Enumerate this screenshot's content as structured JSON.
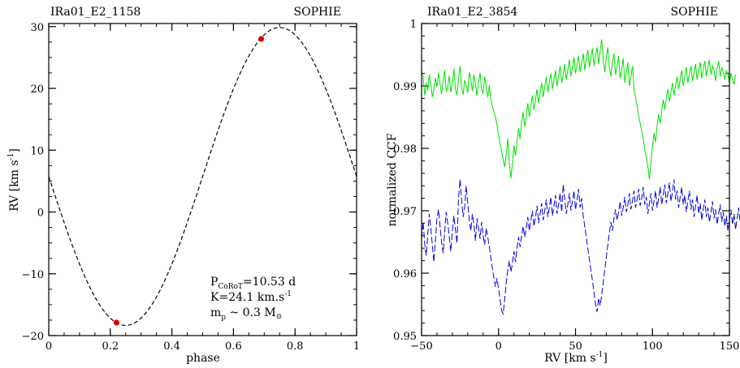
{
  "chart_data": [
    {
      "type": "line",
      "title": "IRa01_E2_1158",
      "instrument": "SOPHIE",
      "instrument_color": "#e00000",
      "xlabel": "phase",
      "ylabel_main": "RV  [km s",
      "ylabel_sup": "-1",
      "ylabel_end": "]",
      "xlim": [
        0,
        1
      ],
      "ylim": [
        -20,
        30.5
      ],
      "xticks": [
        0,
        0.2,
        0.4,
        0.6,
        0.8,
        1
      ],
      "xtick_labels": [
        "0",
        "0.2",
        "0.4",
        "0.6",
        "0.8",
        "1"
      ],
      "yticks": [
        -20,
        -10,
        0,
        10,
        20,
        30
      ],
      "ytick_labels": [
        "−20",
        "−10",
        "0",
        "10",
        "20",
        "30"
      ],
      "model_curve": {
        "style": "dashed",
        "color": "#000000",
        "function": "sine",
        "offset": 5.75,
        "amplitude": 24.1,
        "phase_of_minimum": 0.25
      },
      "series": [
        {
          "color": "#e00000",
          "points": [
            {
              "x": 0.22,
              "y": -17.9
            },
            {
              "x": 0.69,
              "y": 28.0
            }
          ]
        }
      ],
      "annotation": {
        "p_main": "P",
        "p_sub": "CoRoT",
        "p_value": "=10.53  d",
        "k_text": "K=24.1  km.s",
        "k_sup": "-1",
        "m_main": "m",
        "m_sub": "p",
        "m_value": " ~ 0.3  M",
        "m_sun": "⊙"
      }
    },
    {
      "type": "line",
      "title": "IRa01_E2_3854",
      "instrument": "SOPHIE",
      "instrument_color": "#000000",
      "xlabel_main": "RV  [km s",
      "xlabel_sup": "-1",
      "xlabel_end": "]",
      "ylabel": "normalized CCF",
      "xlim": [
        -50,
        150
      ],
      "ylim": [
        0.95,
        1.0
      ],
      "xticks": [
        -50,
        0,
        50,
        100,
        150
      ],
      "xtick_labels": [
        "−50",
        "0",
        "50",
        "100",
        "150"
      ],
      "yticks": [
        0.95,
        0.96,
        0.97,
        0.98,
        0.99,
        1.0
      ],
      "ytick_labels": [
        "0.95",
        "0.96",
        "0.97",
        "0.98",
        "0.99",
        "1"
      ],
      "series": [
        {
          "style": "solid",
          "color": "#00e000",
          "x_start": -50,
          "x_step": 1,
          "y": [
            0.9925,
            0.9915,
            0.9885,
            0.9905,
            0.9893,
            0.9918,
            0.9902,
            0.9882,
            0.9896,
            0.9913,
            0.9898,
            0.9921,
            0.9904,
            0.9887,
            0.9908,
            0.9925,
            0.9891,
            0.9899,
            0.9916,
            0.989,
            0.9903,
            0.9928,
            0.9894,
            0.9885,
            0.9911,
            0.9932,
            0.9897,
            0.9886,
            0.9909,
            0.9901,
            0.9889,
            0.9922,
            0.991,
            0.9892,
            0.9918,
            0.9903,
            0.9884,
            0.9907,
            0.9921,
            0.9893,
            0.9888,
            0.9915,
            0.99,
            0.9882,
            0.9901,
            0.9878,
            0.9868,
            0.9858,
            0.985,
            0.9838,
            0.9822,
            0.9808,
            0.9795,
            0.9782,
            0.977,
            0.9792,
            0.9815,
            0.9778,
            0.9752,
            0.9775,
            0.9805,
            0.9788,
            0.981,
            0.9832,
            0.9815,
            0.984,
            0.9858,
            0.9835,
            0.9852,
            0.9872,
            0.985,
            0.9868,
            0.9885,
            0.9862,
            0.9878,
            0.9895,
            0.9872,
            0.9888,
            0.9905,
            0.9882,
            0.9898,
            0.9915,
            0.989,
            0.9906,
            0.992,
            0.9895,
            0.991,
            0.9925,
            0.99,
            0.9915,
            0.9932,
            0.9905,
            0.9918,
            0.9935,
            0.991,
            0.9925,
            0.9942,
            0.9915,
            0.993,
            0.9946,
            0.992,
            0.9935,
            0.9948,
            0.9922,
            0.9938,
            0.9952,
            0.9925,
            0.9942,
            0.9958,
            0.993,
            0.9945,
            0.996,
            0.9932,
            0.9948,
            0.9962,
            0.9935,
            0.9955,
            0.9975,
            0.994,
            0.9922,
            0.9945,
            0.9962,
            0.993,
            0.9915,
            0.9938,
            0.9952,
            0.9918,
            0.9932,
            0.9948,
            0.9912,
            0.9928,
            0.9944,
            0.9905,
            0.9922,
            0.9938,
            0.99,
            0.9915,
            0.9932,
            0.9895,
            0.9882,
            0.9868,
            0.9852,
            0.984,
            0.9828,
            0.9815,
            0.9798,
            0.9785,
            0.9772,
            0.975,
            0.9778,
            0.9802,
            0.9825,
            0.981,
            0.9835,
            0.9855,
            0.984,
            0.986,
            0.9878,
            0.9862,
            0.988,
            0.9895,
            0.9875,
            0.989,
            0.9905,
            0.9885,
            0.99,
            0.9915,
            0.9895,
            0.991,
            0.9925,
            0.99,
            0.9915,
            0.993,
            0.9905,
            0.992,
            0.9932,
            0.9908,
            0.9922,
            0.9935,
            0.991,
            0.9925,
            0.9938,
            0.9912,
            0.9928,
            0.994,
            0.9915,
            0.993,
            0.9942,
            0.9918,
            0.9932,
            0.9925,
            0.9908,
            0.9928,
            0.994,
            0.9915,
            0.993,
            0.9922,
            0.991,
            0.9925,
            0.9918,
            0.9905,
            0.992,
            0.9912,
            0.9902,
            0.9918
          ]
        },
        {
          "style": "dashed",
          "color": "#0000e0",
          "x_start": -50,
          "x_step": 1,
          "y": [
            0.9655,
            0.9682,
            0.9648,
            0.9628,
            0.9662,
            0.9695,
            0.9672,
            0.9645,
            0.9618,
            0.9652,
            0.9688,
            0.9702,
            0.9675,
            0.965,
            0.9632,
            0.9665,
            0.9698,
            0.968,
            0.9658,
            0.9635,
            0.9668,
            0.9692,
            0.967,
            0.9648,
            0.972,
            0.975,
            0.9718,
            0.969,
            0.9705,
            0.974,
            0.9712,
            0.9685,
            0.9668,
            0.9695,
            0.9678,
            0.9652,
            0.9688,
            0.9672,
            0.9655,
            0.9682,
            0.966,
            0.9645,
            0.9672,
            0.9658,
            0.9642,
            0.9625,
            0.9608,
            0.9592,
            0.9578,
            0.9592,
            0.9575,
            0.9558,
            0.954,
            0.9535,
            0.9558,
            0.9585,
            0.9605,
            0.962,
            0.9602,
            0.9615,
            0.9635,
            0.9618,
            0.964,
            0.9658,
            0.9642,
            0.966,
            0.9675,
            0.9658,
            0.9672,
            0.969,
            0.9668,
            0.9685,
            0.97,
            0.9675,
            0.969,
            0.9708,
            0.968,
            0.9695,
            0.9712,
            0.9685,
            0.97,
            0.9718,
            0.969,
            0.9705,
            0.9722,
            0.9692,
            0.9708,
            0.9725,
            0.9695,
            0.971,
            0.9728,
            0.9698,
            0.9742,
            0.9718,
            0.9695,
            0.971,
            0.9728,
            0.97,
            0.9715,
            0.9732,
            0.9702,
            0.9718,
            0.9735,
            0.9705,
            0.972,
            0.9692,
            0.9675,
            0.9658,
            0.964,
            0.9622,
            0.9605,
            0.9588,
            0.957,
            0.955,
            0.9538,
            0.956,
            0.9548,
            0.9565,
            0.9585,
            0.9605,
            0.9625,
            0.9645,
            0.9665,
            0.9682,
            0.9668,
            0.9688,
            0.9702,
            0.9685,
            0.9698,
            0.9715,
            0.9692,
            0.9705,
            0.9722,
            0.9698,
            0.971,
            0.9728,
            0.9702,
            0.9715,
            0.9732,
            0.9705,
            0.9718,
            0.9735,
            0.9708,
            0.972,
            0.9738,
            0.971,
            0.9722,
            0.9695,
            0.9712,
            0.9728,
            0.97,
            0.9715,
            0.9732,
            0.9705,
            0.972,
            0.9738,
            0.971,
            0.9725,
            0.9742,
            0.9712,
            0.9728,
            0.9745,
            0.9715,
            0.973,
            0.975,
            0.9718,
            0.9732,
            0.9705,
            0.9722,
            0.9738,
            0.971,
            0.9725,
            0.9698,
            0.9715,
            0.9732,
            0.9702,
            0.9718,
            0.969,
            0.9708,
            0.9725,
            0.9695,
            0.9712,
            0.9685,
            0.9702,
            0.9718,
            0.969,
            0.9705,
            0.9682,
            0.9698,
            0.9715,
            0.9688,
            0.9702,
            0.9678,
            0.9695,
            0.971,
            0.9682,
            0.9698,
            0.9675,
            0.9692,
            0.9668,
            0.9685,
            0.9702,
            0.9678,
            0.9695,
            0.967,
            0.9688,
            0.9705,
            0.968
          ]
        }
      ]
    }
  ]
}
